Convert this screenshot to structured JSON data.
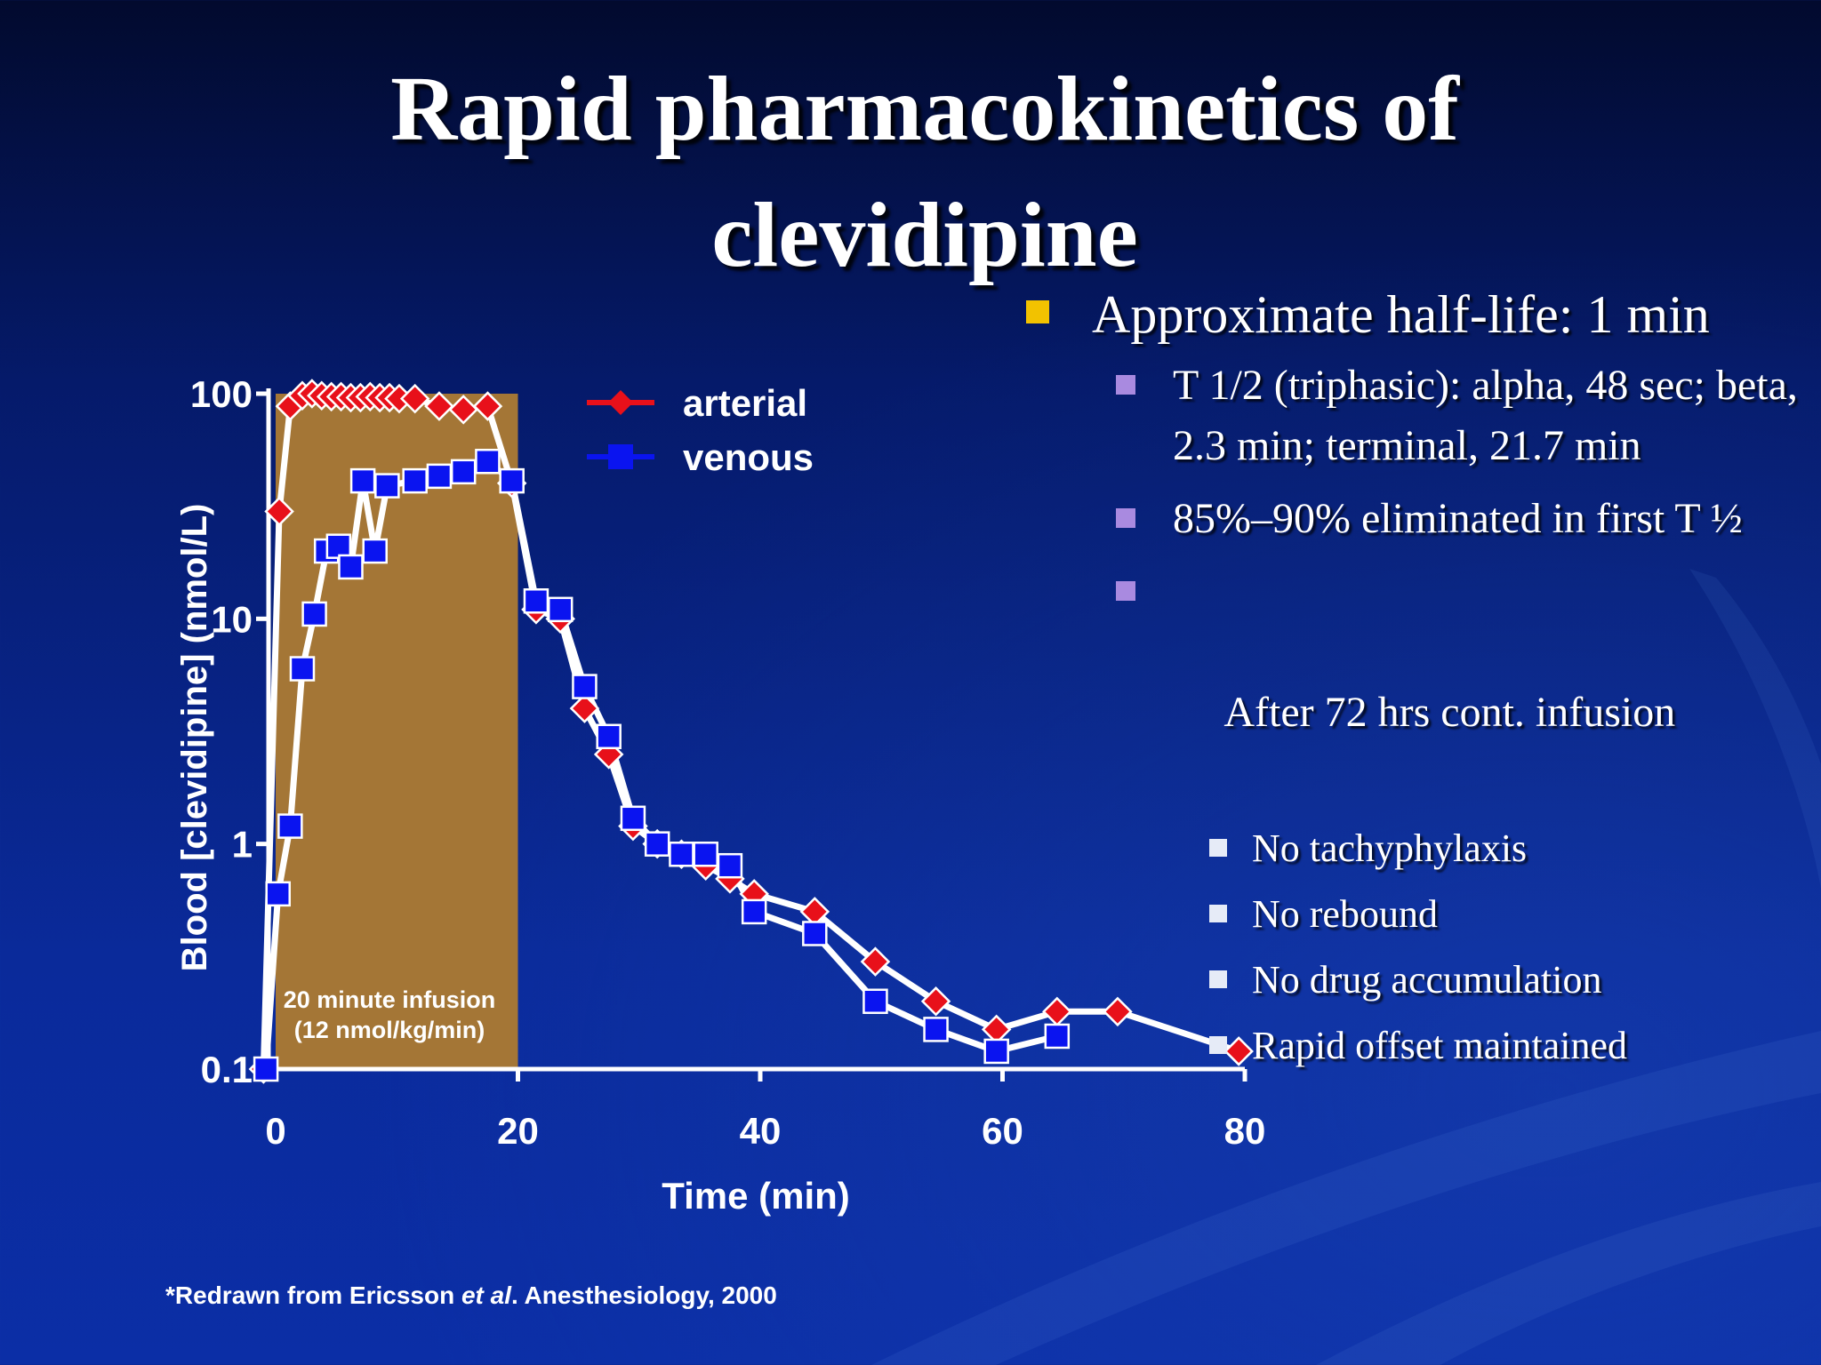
{
  "slide": {
    "title_line1": "Rapid pharmacokinetics of",
    "title_line2": "clevidipine",
    "bullets": {
      "main": "Approximate half-life: 1 min",
      "sub1": "T 1/2 (triphasic): alpha, 48 sec; beta, 2.3 min; terminal, 21.7 min",
      "sub2": "85%–90% eliminated in first T ½",
      "sub3": " After 72 hrs cont. infusion",
      "sub3_items": [
        "No tachyphylaxis",
        "No rebound",
        "No drug accumulation",
        "Rapid offset maintained"
      ]
    },
    "footnote": {
      "pre": "*Redrawn from Ericsson ",
      "italic": "et al",
      "post": ". Anesthesiology, 2000"
    },
    "colors": {
      "bullet_main": "#f2c200",
      "bullet_sub": "#a98ae0",
      "bullet_subsub": "#e6ebf7"
    }
  },
  "chart_data": {
    "type": "line",
    "title": "",
    "xlabel": "Time (min)",
    "ylabel": "Blood [clevidipine] (nmol/L)",
    "xlim": [
      0,
      80
    ],
    "ylim": [
      0.1,
      100
    ],
    "y_scale": "log",
    "x_ticks": [
      "0",
      "20",
      "40",
      "60",
      "80"
    ],
    "x_tick_values": [
      0,
      20,
      40,
      60,
      80
    ],
    "y_ticks": [
      "100",
      "10",
      "1",
      "0.1"
    ],
    "y_tick_values": [
      100,
      10,
      1,
      0.1
    ],
    "legend_position": "top-center",
    "annotation": {
      "line1": "20 minute infusion",
      "line2": "(12 nmol/kg/min)",
      "x_range": [
        0,
        20
      ]
    },
    "series": [
      {
        "name": "arterial",
        "color": "#e8101a",
        "marker": "diamond",
        "x": [
          -1,
          0.3,
          1.2,
          2.2,
          3,
          3.8,
          4.6,
          5.4,
          6.2,
          7,
          7.8,
          8.6,
          9.4,
          10.2,
          11.5,
          13.5,
          15.5,
          17.5,
          19.5,
          21.5,
          23.5,
          25.5,
          27.5,
          29.5,
          31.5,
          33.5,
          35.5,
          37.5,
          39.5,
          44.5,
          49.5,
          54.5,
          59.5,
          64.5,
          69.5,
          79.5
        ],
        "y": [
          0.1,
          30,
          88,
          98,
          100,
          98,
          97,
          97,
          96,
          96,
          97,
          96,
          96,
          95,
          95,
          88,
          85,
          88,
          40,
          11,
          10,
          4,
          2.5,
          1.2,
          1.0,
          0.9,
          0.8,
          0.7,
          0.6,
          0.5,
          0.3,
          0.2,
          0.15,
          0.18,
          0.18,
          0.12
        ]
      },
      {
        "name": "venous",
        "color": "#0a14f0",
        "marker": "square",
        "x": [
          -0.8,
          0.2,
          1.2,
          2.2,
          3.2,
          4.2,
          5.2,
          6.2,
          7.2,
          8.2,
          9.2,
          11.5,
          13.5,
          15.5,
          17.5,
          19.5,
          21.5,
          23.5,
          25.5,
          27.5,
          29.5,
          31.5,
          33.5,
          35.5,
          37.5,
          39.5,
          44.5,
          49.5,
          54.5,
          59.5,
          64.5
        ],
        "y": [
          0.1,
          0.6,
          1.2,
          6,
          10.5,
          20,
          21,
          17,
          41,
          20,
          39,
          41,
          43,
          45,
          50,
          41,
          12,
          11,
          5,
          3,
          1.3,
          1.0,
          0.9,
          0.9,
          0.8,
          0.5,
          0.4,
          0.2,
          0.15,
          0.12,
          0.14
        ]
      }
    ]
  }
}
